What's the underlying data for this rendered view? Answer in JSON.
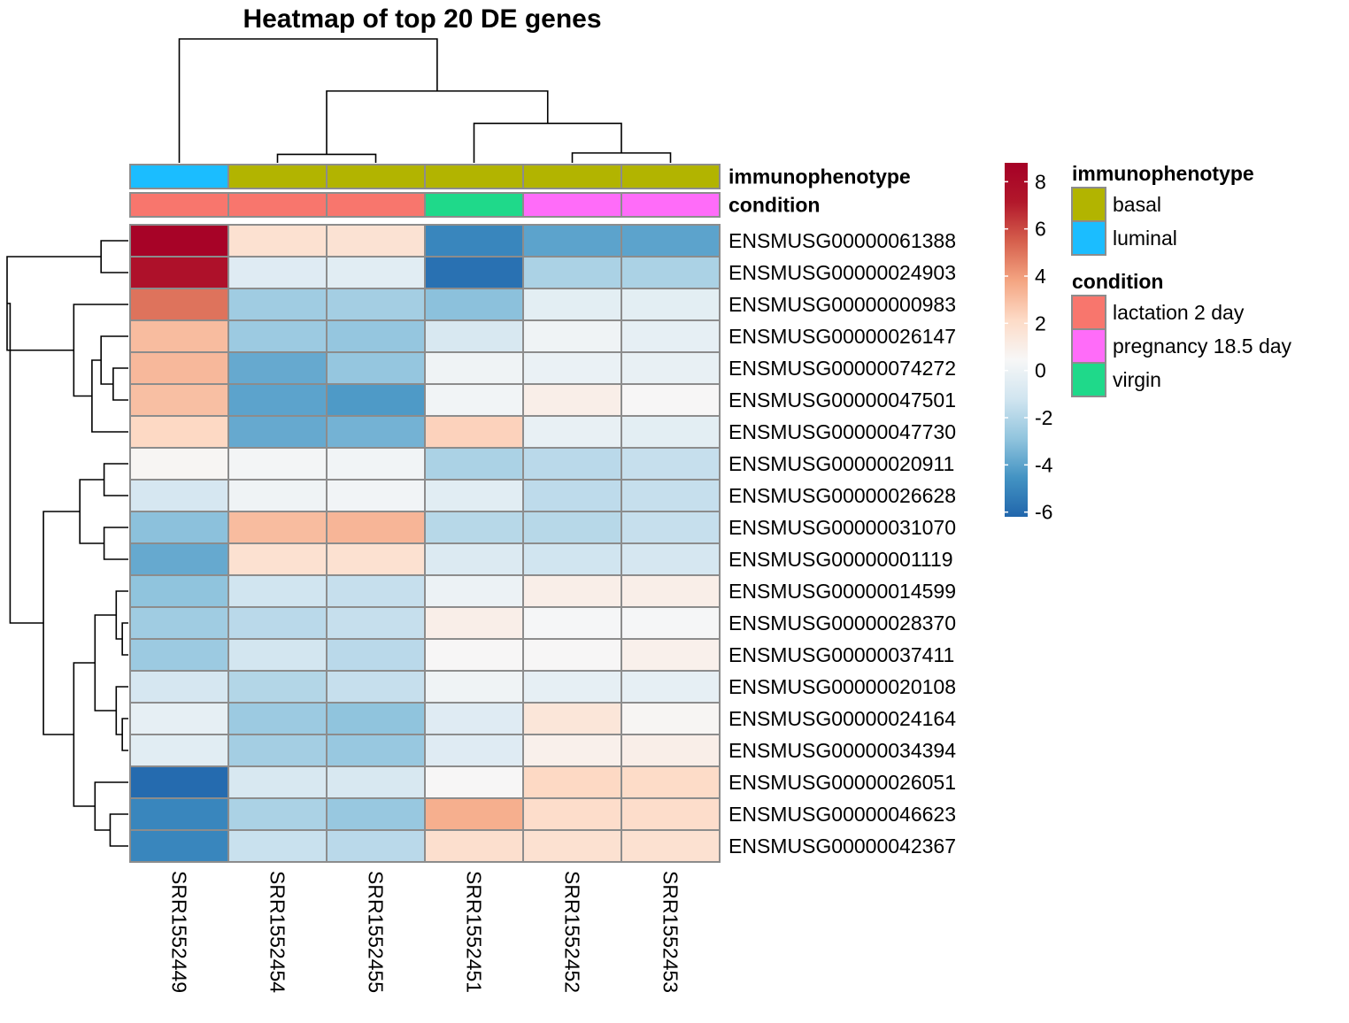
{
  "chart_data": {
    "type": "heatmap",
    "title": "Heatmap of top 20 DE genes",
    "columns": [
      "SRR1552449",
      "SRR1552454",
      "SRR1552455",
      "SRR1552451",
      "SRR1552452",
      "SRR1552453"
    ],
    "rows": [
      "ENSMUSG00000061388",
      "ENSMUSG00000024903",
      "ENSMUSG00000000983",
      "ENSMUSG00000026147",
      "ENSMUSG00000074272",
      "ENSMUSG00000047501",
      "ENSMUSG00000047730",
      "ENSMUSG00000020911",
      "ENSMUSG00000026628",
      "ENSMUSG00000031070",
      "ENSMUSG00000001119",
      "ENSMUSG00000014599",
      "ENSMUSG00000028370",
      "ENSMUSG00000037411",
      "ENSMUSG00000020108",
      "ENSMUSG00000024164",
      "ENSMUSG00000034394",
      "ENSMUSG00000026051",
      "ENSMUSG00000046623",
      "ENSMUSG00000042367"
    ],
    "values": [
      [
        8.6,
        1.8,
        1.7,
        -5.0,
        -4.0,
        -4.0
      ],
      [
        7.6,
        -0.6,
        -0.5,
        -5.8,
        -2.2,
        -2.2
      ],
      [
        5.0,
        -2.5,
        -2.4,
        -3.0,
        -0.4,
        -0.4
      ],
      [
        3.1,
        -2.6,
        -2.8,
        -0.9,
        0.1,
        -0.3
      ],
      [
        3.2,
        -3.8,
        -2.8,
        0.1,
        -0.1,
        -0.2
      ],
      [
        3.0,
        -4.0,
        -4.3,
        0.2,
        1.0,
        0.5
      ],
      [
        2.2,
        -3.8,
        -3.5,
        2.4,
        -0.2,
        -0.4
      ],
      [
        0.6,
        0.3,
        0.2,
        -2.2,
        -1.8,
        -1.5
      ],
      [
        -1.0,
        0.1,
        0.2,
        -0.5,
        -1.7,
        -1.5
      ],
      [
        -3.0,
        3.1,
        3.3,
        -1.9,
        -1.9,
        -1.5
      ],
      [
        -3.8,
        1.8,
        1.8,
        -0.7,
        -1.2,
        -1.0
      ],
      [
        -2.9,
        -1.2,
        -1.5,
        0.0,
        1.0,
        1.0
      ],
      [
        -2.5,
        -1.8,
        -1.5,
        1.0,
        0.4,
        0.4
      ],
      [
        -2.6,
        -1.1,
        -1.8,
        0.5,
        0.5,
        0.9
      ],
      [
        -1.0,
        -2.0,
        -1.5,
        0.1,
        -0.3,
        -0.3
      ],
      [
        -0.3,
        -2.6,
        -2.9,
        -0.6,
        1.5,
        0.6
      ],
      [
        -0.5,
        -2.4,
        -2.7,
        -0.6,
        0.9,
        1.0
      ],
      [
        -6.0,
        -0.9,
        -0.9,
        0.5,
        2.2,
        2.1
      ],
      [
        -5.0,
        -2.2,
        -2.7,
        3.5,
        2.0,
        2.0
      ],
      [
        -5.0,
        -1.4,
        -1.8,
        1.9,
        1.8,
        1.8
      ]
    ],
    "color_scale": {
      "min": -6.2,
      "max": 8.8,
      "colors": [
        "#2166ac",
        "#4393c3",
        "#92c5de",
        "#d1e5f0",
        "#f7f7f7",
        "#fddbc7",
        "#f4a582",
        "#d6604d",
        "#b2182b",
        "#a50026"
      ],
      "ticks": [
        -6,
        -4,
        -2,
        0,
        2,
        4,
        6,
        8
      ]
    },
    "annotations": [
      {
        "name": "immunophenotype",
        "values": [
          "luminal",
          "basal",
          "basal",
          "basal",
          "basal",
          "basal"
        ],
        "levels": [
          {
            "label": "basal",
            "color": "#B2B400"
          },
          {
            "label": "luminal",
            "color": "#1BBDFF"
          }
        ]
      },
      {
        "name": "condition",
        "values": [
          "lactation 2 day",
          "lactation 2 day",
          "lactation 2 day",
          "virgin",
          "pregnancy 18.5 day",
          "pregnancy 18.5 day"
        ],
        "levels": [
          {
            "label": "lactation 2 day",
            "color": "#F8766D"
          },
          {
            "label": "pregnancy 18.5 day",
            "color": "#FF6CF9"
          },
          {
            "label": "virgin",
            "color": "#1FD98A"
          }
        ]
      }
    ],
    "column_dendrogram": [
      {
        "a": 1,
        "b": 2,
        "h": 0.6
      },
      {
        "a": 4,
        "b": 5,
        "h": 0.7
      },
      {
        "a": 3,
        "b": [
          4,
          5
        ],
        "h": 2.8
      },
      {
        "a": [
          1,
          2
        ],
        "b": [
          3,
          4,
          5
        ],
        "h": 5.1
      },
      {
        "a": 0,
        "b": [
          1,
          2,
          3,
          4,
          5
        ],
        "h": 8.8
      }
    ],
    "row_dendrogram": [
      {
        "a": 0,
        "b": 1,
        "h": 0.9
      },
      {
        "a": 4,
        "b": 5,
        "h": 0.5
      },
      {
        "a": 3,
        "b": [
          4,
          5
        ],
        "h": 0.9
      },
      {
        "a": [
          3,
          4,
          5
        ],
        "b": 6,
        "h": 1.2
      },
      {
        "a": 2,
        "b": [
          3,
          4,
          5,
          6
        ],
        "h": 1.8
      },
      {
        "a": [
          0,
          1
        ],
        "b": [
          2,
          3,
          4,
          5,
          6
        ],
        "h": 4.0
      },
      {
        "a": 7,
        "b": 8,
        "h": 0.8
      },
      {
        "a": 9,
        "b": 10,
        "h": 0.8
      },
      {
        "a": [
          7,
          8
        ],
        "b": [
          9,
          10
        ],
        "h": 1.6
      },
      {
        "a": 12,
        "b": 13,
        "h": 0.2
      },
      {
        "a": 11,
        "b": [
          12,
          13
        ],
        "h": 0.4
      },
      {
        "a": 15,
        "b": 16,
        "h": 0.2
      },
      {
        "a": 14,
        "b": [
          15,
          16
        ],
        "h": 0.4
      },
      {
        "a": [
          11,
          12,
          13
        ],
        "b": [
          14,
          15,
          16
        ],
        "h": 1.1
      },
      {
        "a": 18,
        "b": 19,
        "h": 0.6
      },
      {
        "a": 17,
        "b": [
          18,
          19
        ],
        "h": 1.1
      },
      {
        "a": [
          11,
          12,
          13,
          14,
          15,
          16
        ],
        "b": [
          17,
          18,
          19
        ],
        "h": 1.8
      },
      {
        "a": [
          7,
          8,
          9,
          10
        ],
        "b": [
          11,
          12,
          13,
          14,
          15,
          16,
          17,
          18,
          19
        ],
        "h": 2.8
      },
      {
        "a": [
          0,
          1,
          2,
          3,
          4,
          5,
          6
        ],
        "b": [
          7,
          8,
          9,
          10,
          11,
          12,
          13,
          14,
          15,
          16,
          17,
          18,
          19
        ],
        "h": 3.9
      }
    ]
  }
}
